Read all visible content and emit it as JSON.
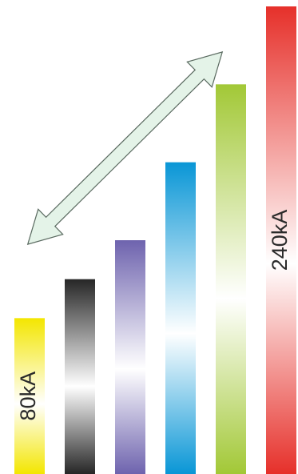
{
  "chart_data": {
    "type": "bar",
    "values": [
      80,
      100,
      120,
      160,
      200,
      240
    ],
    "value_labels": [
      "80kA",
      null,
      null,
      null,
      null,
      "240kA"
    ],
    "colors": [
      "#f3e600",
      "#262626",
      "#6e63ae",
      "#0996d6",
      "#a2c836",
      "#e6302a"
    ]
  }
}
